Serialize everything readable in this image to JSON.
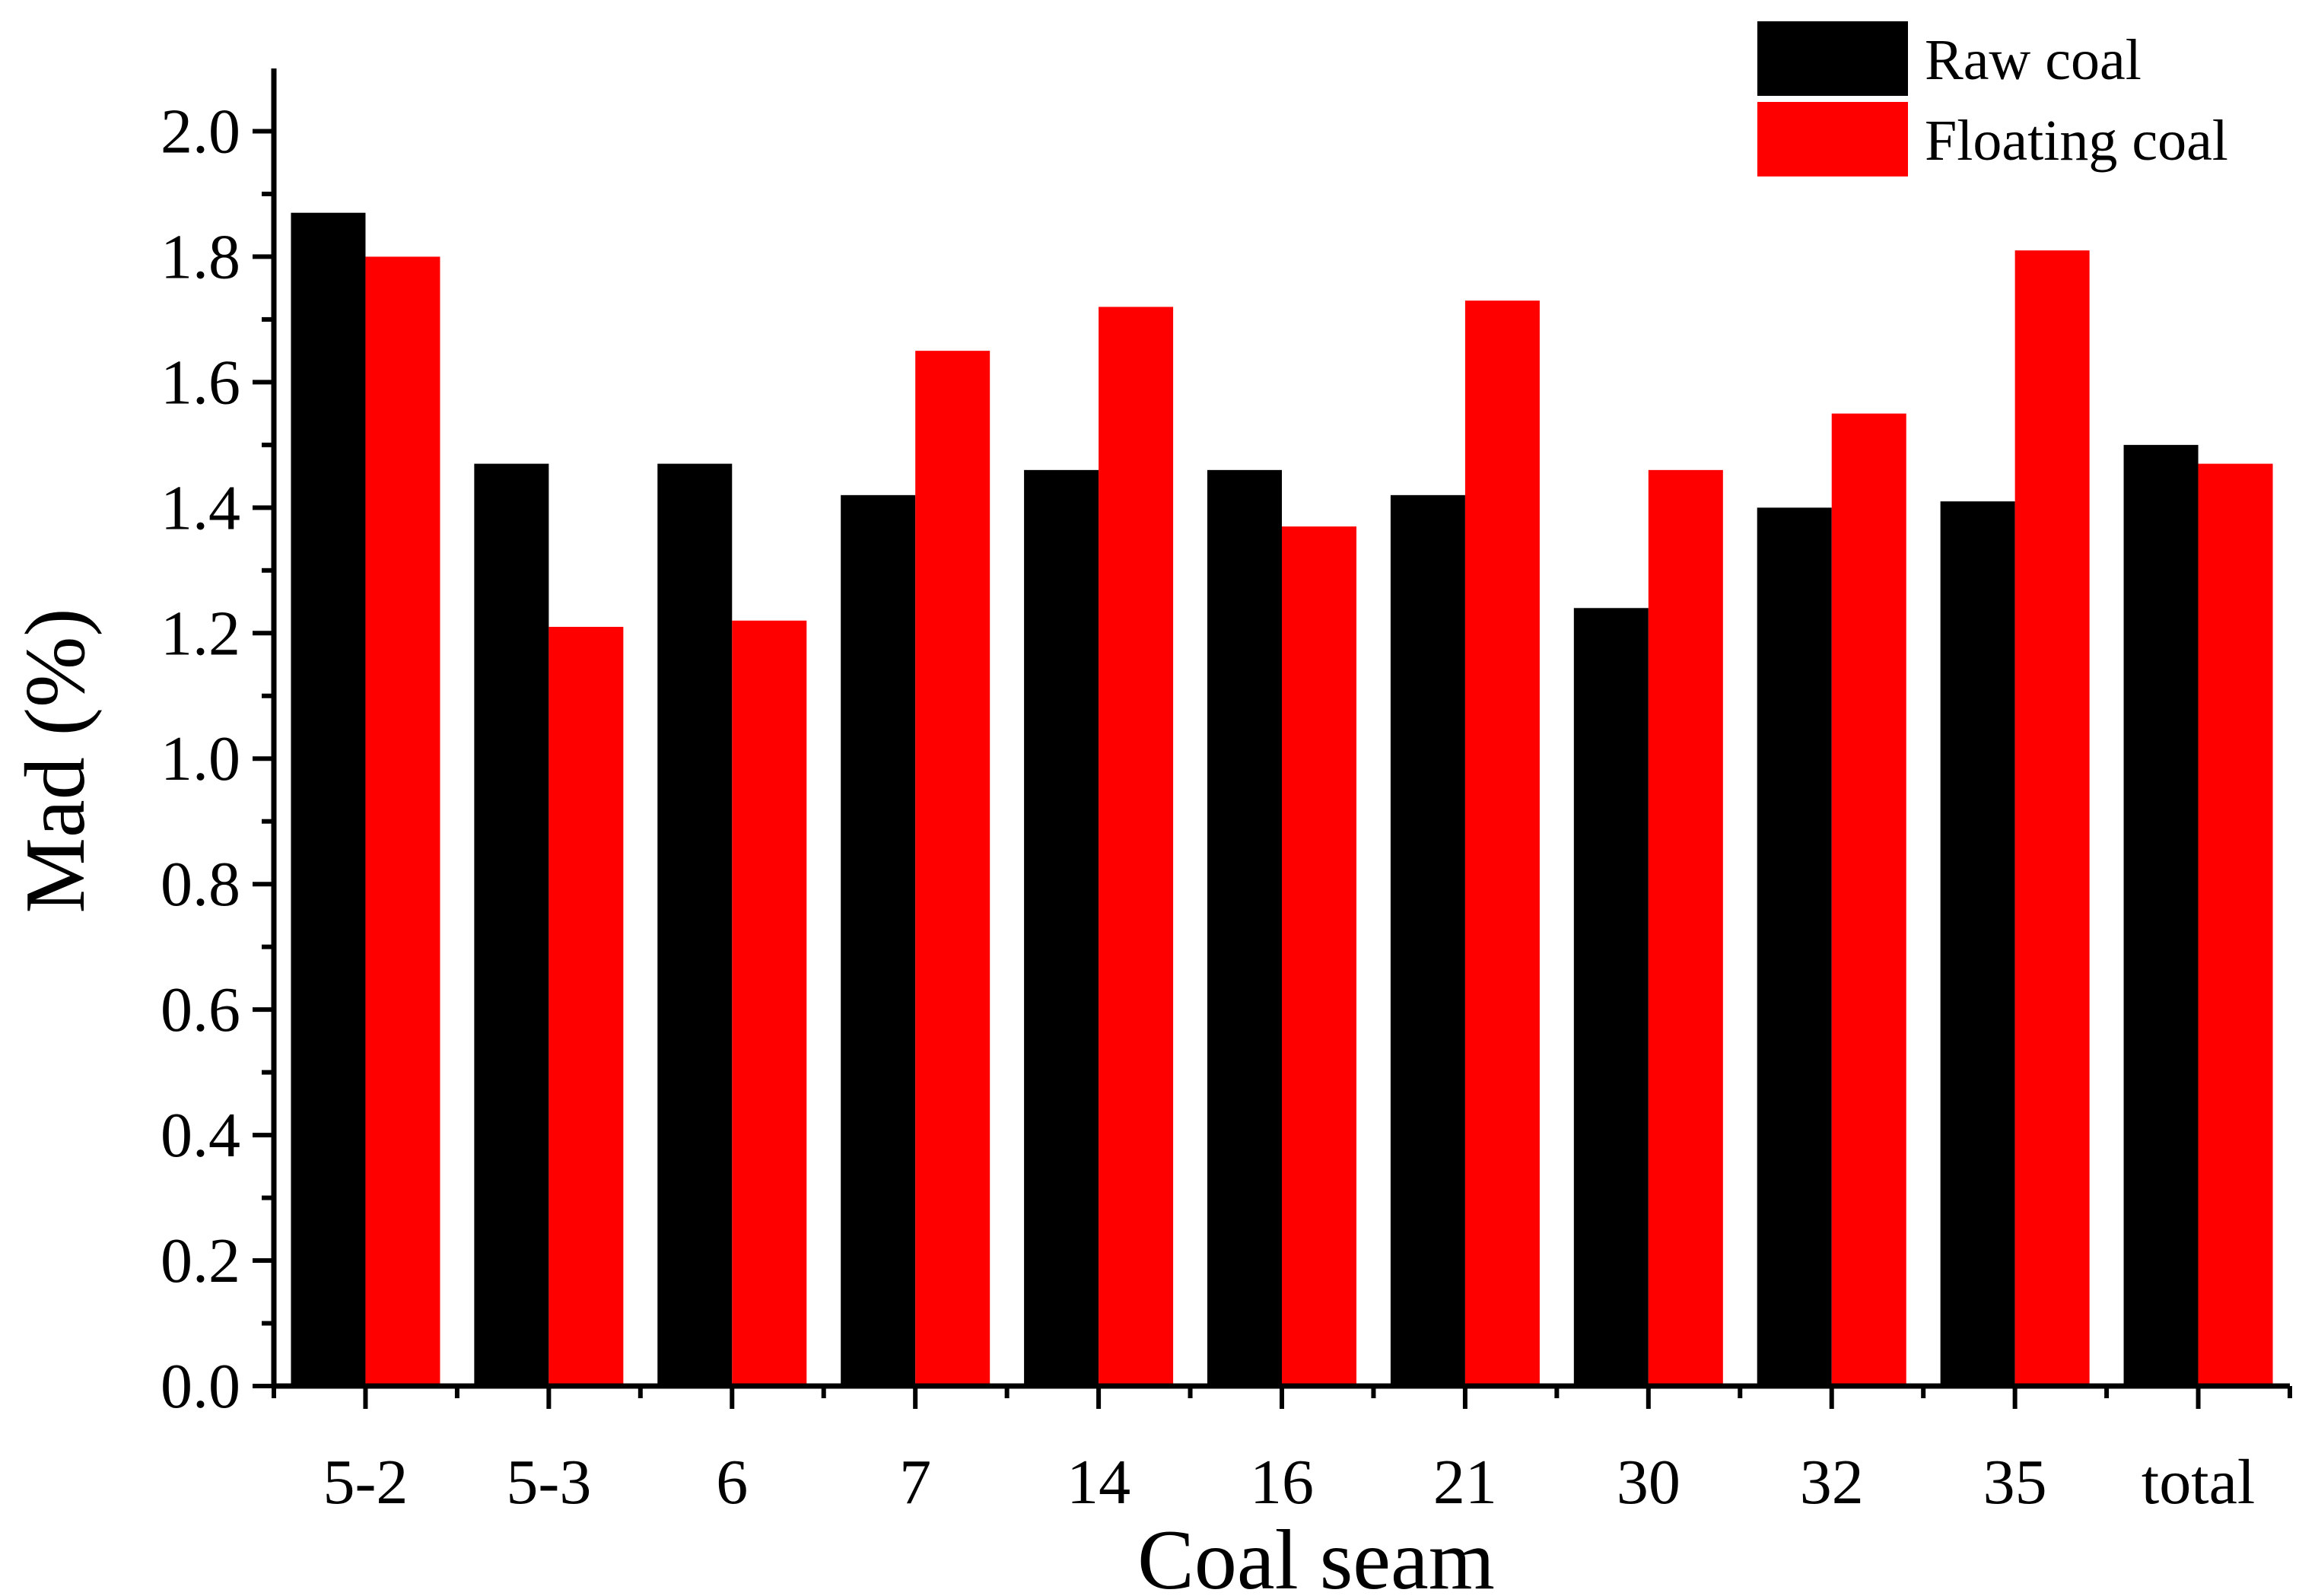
{
  "chart_data": {
    "type": "bar",
    "title": "",
    "xlabel": "Coal seam",
    "ylabel": "Mad (%)",
    "ylim": [
      0,
      2.1
    ],
    "yticks": [
      "0.0",
      "0.2",
      "0.4",
      "0.6",
      "0.8",
      "1.0",
      "1.2",
      "1.4",
      "1.6",
      "1.8",
      "2.0"
    ],
    "categories": [
      "5-2",
      "5-3",
      "6",
      "7",
      "14",
      "16",
      "21",
      "30",
      "32",
      "35",
      "total"
    ],
    "series": [
      {
        "name": "Raw coal",
        "color": "#000000",
        "values": [
          1.87,
          1.47,
          1.47,
          1.42,
          1.46,
          1.46,
          1.42,
          1.24,
          1.4,
          1.41,
          1.5
        ]
      },
      {
        "name": "Floating coal",
        "color": "#ff0000",
        "values": [
          1.8,
          1.21,
          1.22,
          1.65,
          1.72,
          1.37,
          1.73,
          1.46,
          1.55,
          1.81,
          1.47
        ]
      }
    ],
    "legend_position": "top-right",
    "grid": false
  }
}
